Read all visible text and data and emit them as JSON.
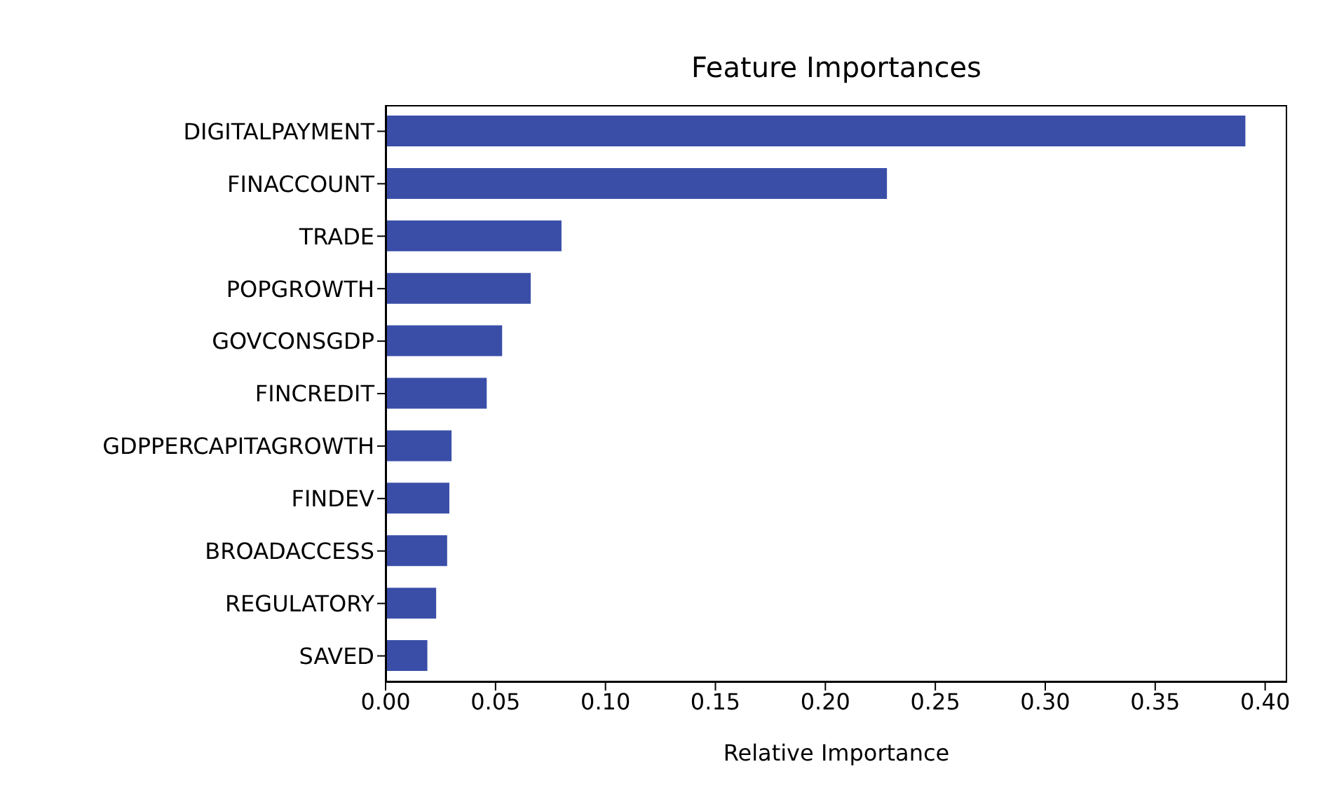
{
  "chart_data": {
    "type": "bar",
    "orientation": "horizontal",
    "title": "Feature Importances",
    "xlabel": "Relative Importance",
    "categories": [
      "DIGITALPAYMENT",
      "FINACCOUNT",
      "TRADE",
      "POPGROWTH",
      "GOVCONSGDP",
      "FINCREDIT",
      "GDPPERCAPITAGROWTH",
      "FINDEV",
      "BROADACCESS",
      "REGULATORY",
      "SAVED"
    ],
    "values": [
      0.391,
      0.228,
      0.08,
      0.066,
      0.053,
      0.046,
      0.03,
      0.029,
      0.028,
      0.023,
      0.019
    ],
    "color": "#3a4ea8",
    "xlim": [
      0,
      0.41
    ],
    "xticks": [
      {
        "value": 0,
        "label": "0.00"
      },
      {
        "value": 0.05,
        "label": "0.05"
      },
      {
        "value": 0.1,
        "label": "0.10"
      },
      {
        "value": 0.15,
        "label": "0.15"
      },
      {
        "value": 0.2,
        "label": "0.20"
      },
      {
        "value": 0.25,
        "label": "0.25"
      },
      {
        "value": 0.3,
        "label": "0.30"
      },
      {
        "value": 0.35,
        "label": "0.35"
      },
      {
        "value": 0.4,
        "label": "0.40"
      }
    ],
    "grid": false,
    "legend": false
  }
}
